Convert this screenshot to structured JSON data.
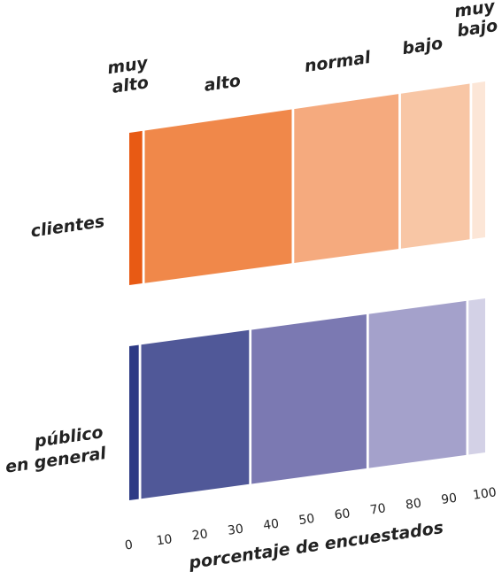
{
  "chart_data": {
    "type": "bar",
    "orientation": "horizontal",
    "stacked": true,
    "xlabel": "porcentaje de encuestados",
    "xlim": [
      0,
      100
    ],
    "xticks": [
      "0",
      "10",
      "20",
      "30",
      "40",
      "50",
      "60",
      "70",
      "80",
      "90",
      "100"
    ],
    "categories": [
      "muy alto",
      "alto",
      "normal",
      "bajo",
      "muy bajo"
    ],
    "category_labels": [
      [
        "muy",
        "alto"
      ],
      [
        "alto"
      ],
      [
        "normal"
      ],
      [
        "bajo"
      ],
      [
        "muy",
        "bajo"
      ]
    ],
    "rows": [
      {
        "label": [
          "clientes"
        ],
        "values": [
          4,
          42,
          30,
          20,
          4
        ],
        "colors": [
          "#e85a14",
          "#f0884a",
          "#f5aa7e",
          "#f8c6a5",
          "#fce6d7"
        ]
      },
      {
        "label": [
          "público",
          "en general"
        ],
        "values": [
          3,
          31,
          33,
          28,
          5
        ],
        "colors": [
          "#2d3a85",
          "#505898",
          "#7b79b2",
          "#a4a1cb",
          "#d3d1e6"
        ]
      }
    ]
  }
}
